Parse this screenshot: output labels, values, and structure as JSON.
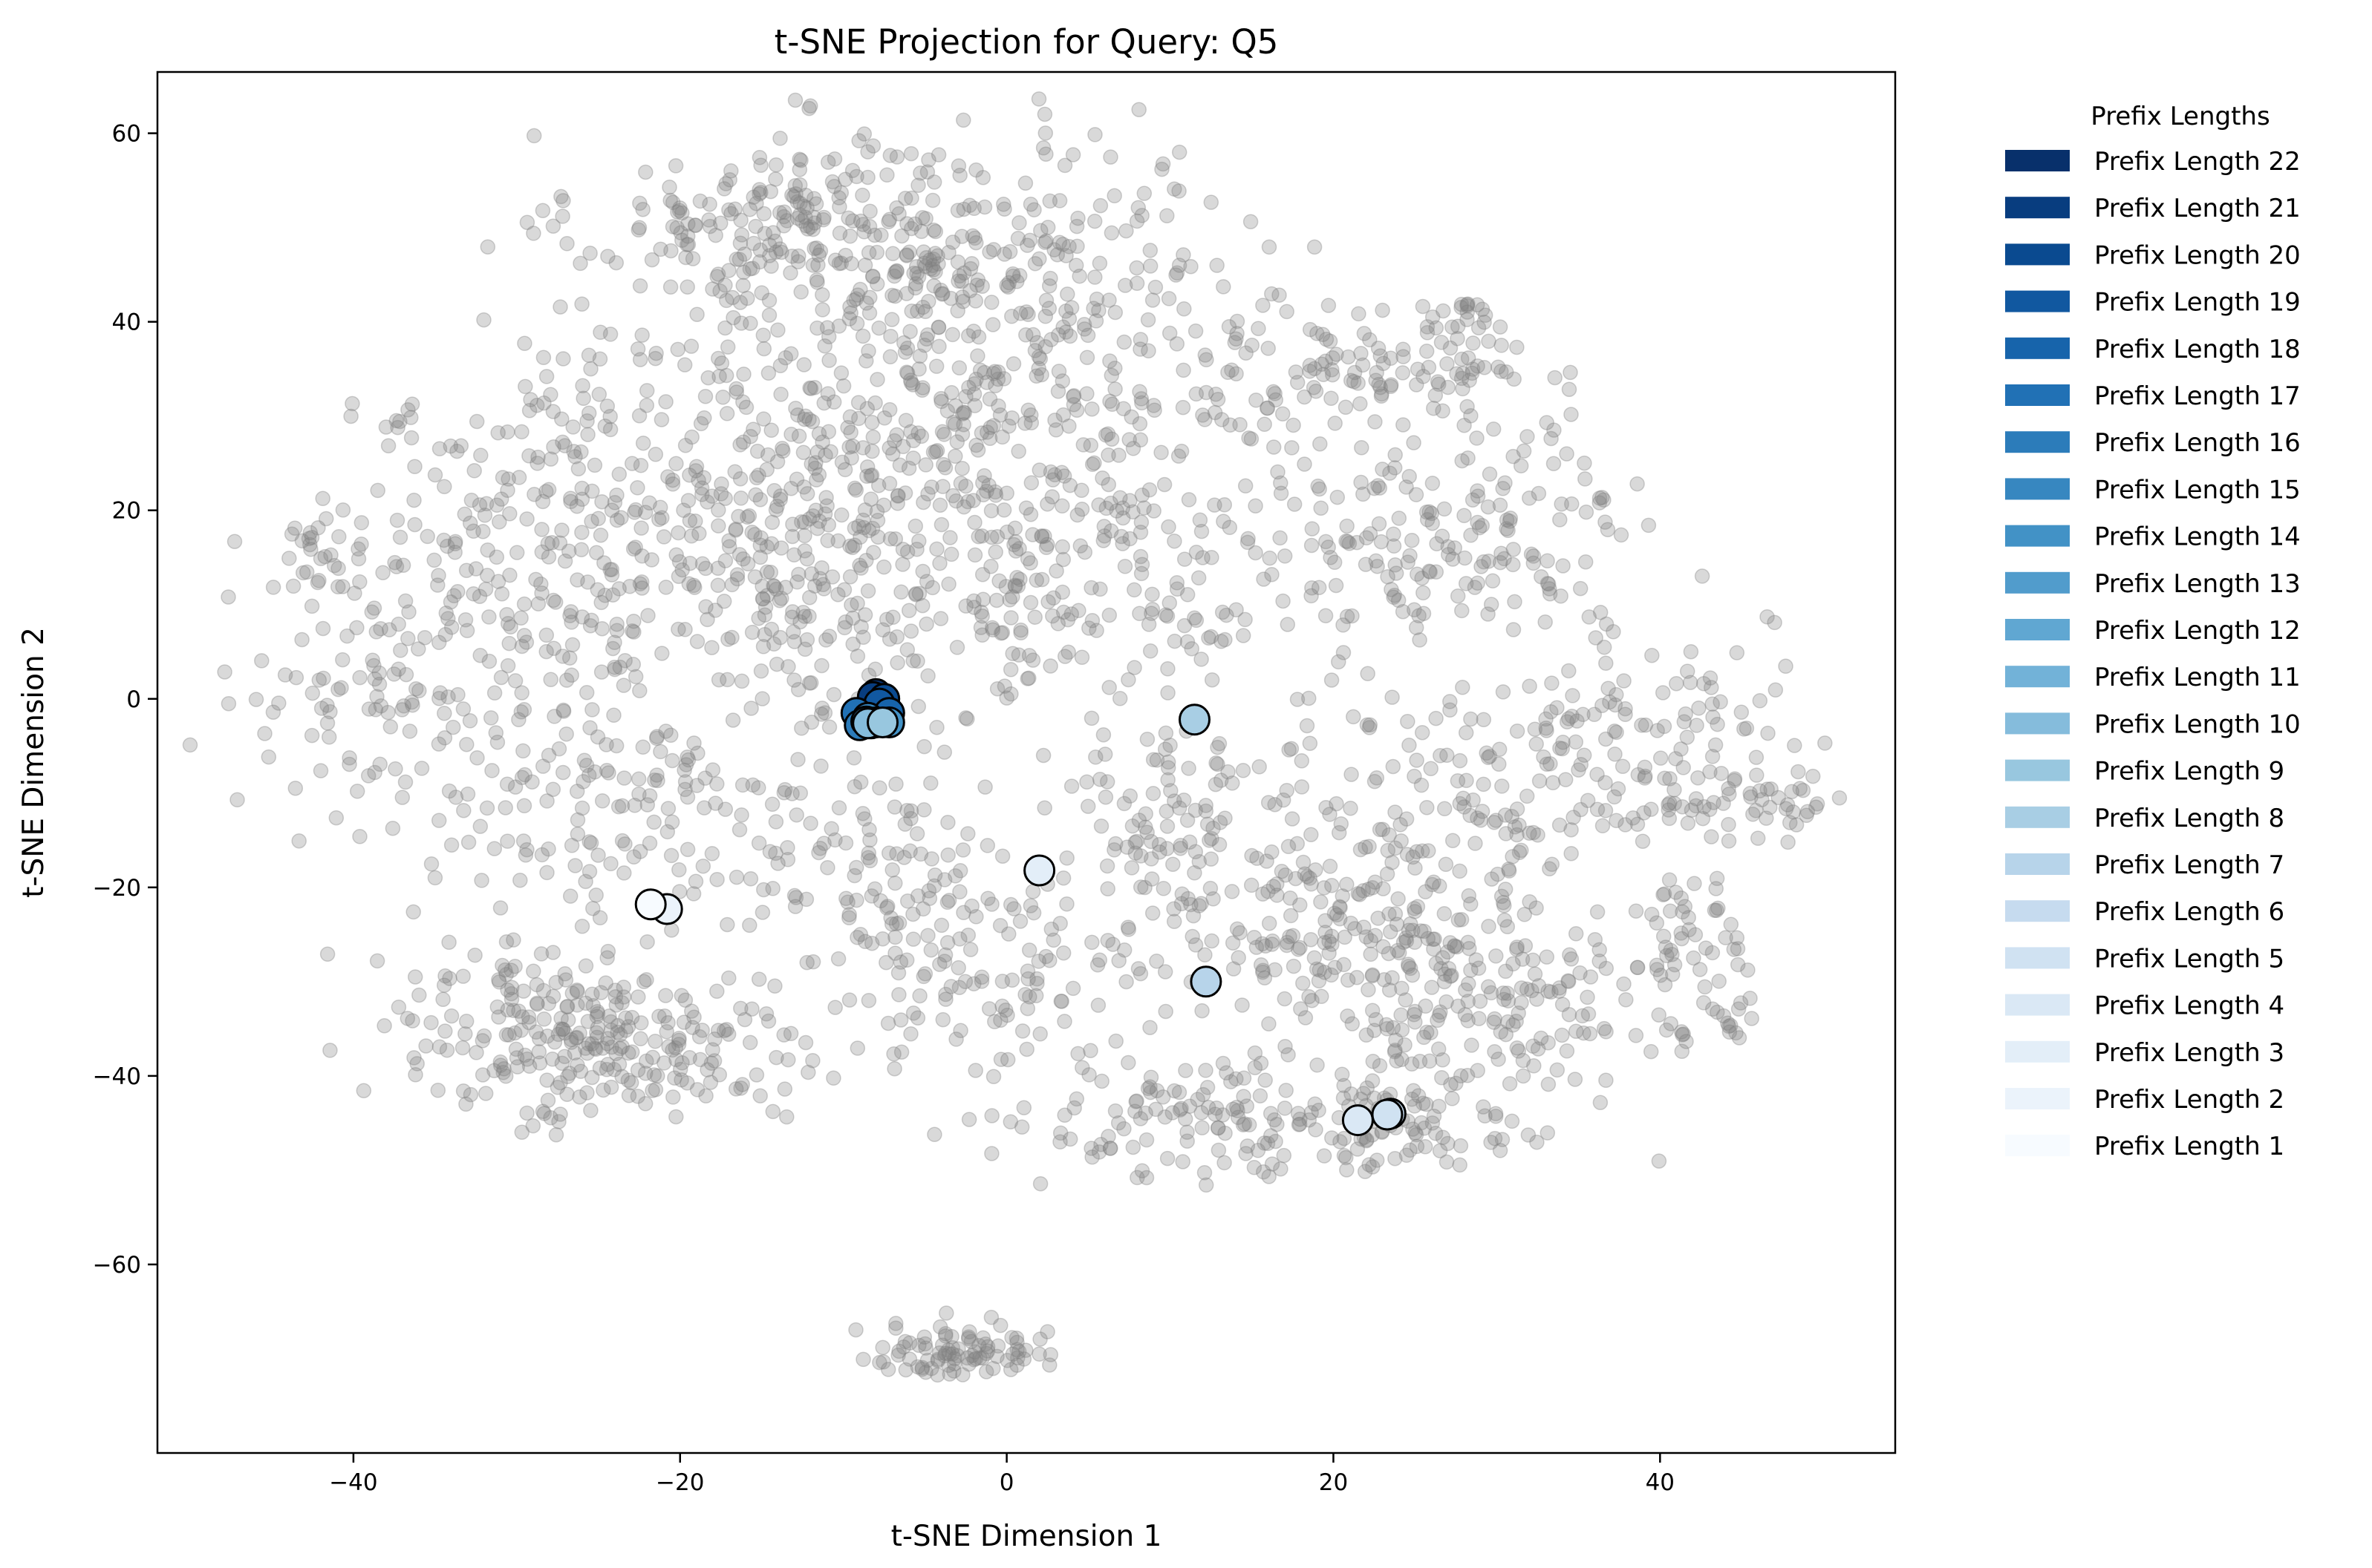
{
  "chart_data": {
    "type": "scatter",
    "title": "t-SNE Projection for Query: Q5",
    "xlabel": "t-SNE Dimension 1",
    "ylabel": "t-SNE Dimension 2",
    "xlim": [
      -52,
      54.4
    ],
    "ylim": [
      -80,
      66.5
    ],
    "xticks": [
      -40,
      -20,
      0,
      20,
      40
    ],
    "yticks": [
      -60,
      -40,
      -20,
      0,
      20,
      40,
      60
    ],
    "grid": false,
    "legend": {
      "title": "Prefix Lengths",
      "placement": "outside-right-top",
      "entries": [
        {
          "label": "Prefix Length 22",
          "color": "#08306b"
        },
        {
          "label": "Prefix Length 21",
          "color": "#083d7f"
        },
        {
          "label": "Prefix Length 20",
          "color": "#0a4a90"
        },
        {
          "label": "Prefix Length 19",
          "color": "#1158a0"
        },
        {
          "label": "Prefix Length 18",
          "color": "#1764ab"
        },
        {
          "label": "Prefix Length 17",
          "color": "#2171b5"
        },
        {
          "label": "Prefix Length 16",
          "color": "#2c7cba"
        },
        {
          "label": "Prefix Length 15",
          "color": "#3787c0"
        },
        {
          "label": "Prefix Length 14",
          "color": "#4292c6"
        },
        {
          "label": "Prefix Length 13",
          "color": "#519ccc"
        },
        {
          "label": "Prefix Length 12",
          "color": "#60a7d2"
        },
        {
          "label": "Prefix Length 11",
          "color": "#72b2d8"
        },
        {
          "label": "Prefix Length 10",
          "color": "#85bcdc"
        },
        {
          "label": "Prefix Length 9",
          "color": "#98c7df"
        },
        {
          "label": "Prefix Length 8",
          "color": "#a8cee4"
        },
        {
          "label": "Prefix Length 7",
          "color": "#b7d4ea"
        },
        {
          "label": "Prefix Length 6",
          "color": "#c6dbef"
        },
        {
          "label": "Prefix Length 5",
          "color": "#d0e2f2"
        },
        {
          "label": "Prefix Length 4",
          "color": "#dae8f5"
        },
        {
          "label": "Prefix Length 3",
          "color": "#e3eef8"
        },
        {
          "label": "Prefix Length 2",
          "color": "#ebf3fb"
        },
        {
          "label": "Prefix Length 1",
          "color": "#f7fbff"
        }
      ]
    },
    "background_points": {
      "color": "#808080",
      "opacity": 0.3,
      "clusters": [
        {
          "cx": -12,
          "cy": 50,
          "sx": 7,
          "sy": 5,
          "n": 260
        },
        {
          "cx": -3,
          "cy": 32,
          "sx": 9,
          "sy": 9,
          "n": 320
        },
        {
          "cx": -18,
          "cy": 25,
          "sx": 8,
          "sy": 7,
          "n": 200
        },
        {
          "cx": -12,
          "cy": 10,
          "sx": 8,
          "sy": 7,
          "n": 220
        },
        {
          "cx": 6,
          "cy": 12,
          "sx": 7,
          "sy": 8,
          "n": 180
        },
        {
          "cx": 3,
          "cy": 48,
          "sx": 5,
          "sy": 6,
          "n": 100
        },
        {
          "cx": -30,
          "cy": 12,
          "sx": 6,
          "sy": 9,
          "n": 160
        },
        {
          "cx": -38,
          "cy": 0,
          "sx": 5,
          "sy": 6,
          "n": 90
        },
        {
          "cx": -43,
          "cy": 15,
          "sx": 2,
          "sy": 3,
          "n": 30
        },
        {
          "cx": -37,
          "cy": 29,
          "sx": 1.2,
          "sy": 1.5,
          "n": 8
        },
        {
          "cx": -28,
          "cy": -35,
          "sx": 5,
          "sy": 5,
          "n": 200
        },
        {
          "cx": -20,
          "cy": -38,
          "sx": 4,
          "sy": 4,
          "n": 80
        },
        {
          "cx": -25,
          "cy": -12,
          "sx": 6,
          "sy": 6,
          "n": 120
        },
        {
          "cx": -10,
          "cy": -18,
          "sx": 5,
          "sy": 5,
          "n": 100
        },
        {
          "cx": -2,
          "cy": -30,
          "sx": 5,
          "sy": 5,
          "n": 110
        },
        {
          "cx": 10,
          "cy": -15,
          "sx": 5,
          "sy": 6,
          "n": 100
        },
        {
          "cx": 13,
          "cy": -45,
          "sx": 6,
          "sy": 3,
          "n": 130
        },
        {
          "cx": 22,
          "cy": -22,
          "sx": 7,
          "sy": 9,
          "n": 300
        },
        {
          "cx": 30,
          "cy": -32,
          "sx": 5,
          "sy": 5,
          "n": 120
        },
        {
          "cx": 25,
          "cy": -45,
          "sx": 4,
          "sy": 3,
          "n": 70
        },
        {
          "cx": 35,
          "cy": -5,
          "sx": 6,
          "sy": 6,
          "n": 160
        },
        {
          "cx": 45,
          "cy": -11,
          "sx": 3,
          "sy": 2,
          "n": 50
        },
        {
          "cx": 42,
          "cy": -25,
          "sx": 2,
          "sy": 3,
          "n": 40
        },
        {
          "cx": 43,
          "cy": -34,
          "sx": 1.5,
          "sy": 1.5,
          "n": 20
        },
        {
          "cx": 25,
          "cy": 35,
          "sx": 4,
          "sy": 3,
          "n": 100
        },
        {
          "cx": 28,
          "cy": 17,
          "sx": 6,
          "sy": 5,
          "n": 160
        },
        {
          "cx": 28,
          "cy": 41,
          "sx": 1.5,
          "sy": 1,
          "n": 15
        },
        {
          "cx": 14,
          "cy": 35,
          "sx": 4,
          "sy": 6,
          "n": 60
        },
        {
          "cx": -3,
          "cy": -69,
          "sx": 2.5,
          "sy": 1.5,
          "n": 90
        }
      ]
    },
    "highlight_points": [
      {
        "x": -8,
        "y": 0.5,
        "prefix_length": 22
      },
      {
        "x": -8.2,
        "y": 0.2,
        "prefix_length": 21
      },
      {
        "x": -7.5,
        "y": 0,
        "prefix_length": 20
      },
      {
        "x": -7.8,
        "y": -0.5,
        "prefix_length": 19
      },
      {
        "x": -7.2,
        "y": -1.5,
        "prefix_length": 18
      },
      {
        "x": -9.2,
        "y": -1.5,
        "prefix_length": 17
      },
      {
        "x": -9,
        "y": -2.8,
        "prefix_length": 16
      },
      {
        "x": -8.5,
        "y": -2,
        "prefix_length": 15
      },
      {
        "x": -7.2,
        "y": -2.5,
        "prefix_length": 14
      },
      {
        "x": -8.6,
        "y": -2.4,
        "prefix_length": 13
      },
      {
        "x": -8.3,
        "y": -2.6,
        "prefix_length": 12
      },
      {
        "x": -8,
        "y": -2.5,
        "prefix_length": 11
      },
      {
        "x": -8.5,
        "y": -2.6,
        "prefix_length": 10
      },
      {
        "x": -7.6,
        "y": -2.5,
        "prefix_length": 9
      },
      {
        "x": 11.5,
        "y": -2.2,
        "prefix_length": 8
      },
      {
        "x": 12.2,
        "y": -30,
        "prefix_length": 7
      },
      {
        "x": 23.5,
        "y": -44,
        "prefix_length": 6
      },
      {
        "x": 23.3,
        "y": -44.1,
        "prefix_length": 5
      },
      {
        "x": 21.5,
        "y": -44.7,
        "prefix_length": 4
      },
      {
        "x": 2,
        "y": -18.2,
        "prefix_length": 3
      },
      {
        "x": -20.8,
        "y": -22.3,
        "prefix_length": 2
      },
      {
        "x": -21.8,
        "y": -21.8,
        "prefix_length": 1
      }
    ]
  }
}
